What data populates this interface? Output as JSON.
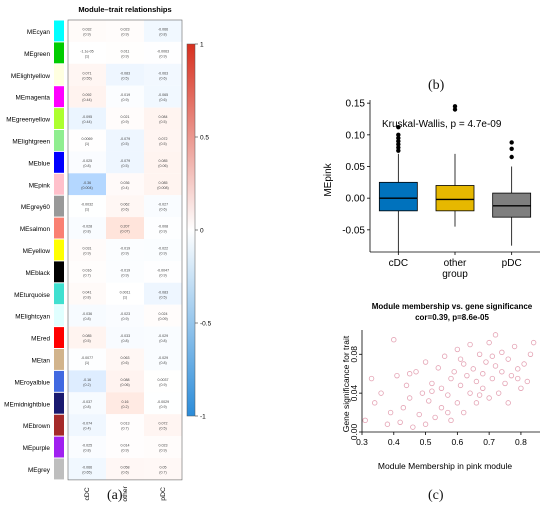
{
  "heatmap": {
    "title": "Module–trait relationships",
    "modules": [
      "MEcyan",
      "MEgreen",
      "MElightyellow",
      "MEmagenta",
      "MEgreenyellow",
      "MElightgreen",
      "MEblue",
      "MEpink",
      "MEgrey60",
      "MEsalmon",
      "MEyellow",
      "MEblack",
      "MEturquoise",
      "MElightcyan",
      "MEred",
      "MEtan",
      "MEroyalblue",
      "MEmidnightblue",
      "MEbrown",
      "MEpurple",
      "MEgrey"
    ],
    "module_colors": [
      "#00ffff",
      "#00cc00",
      "#ffffe0",
      "#ff00ff",
      "#adff2f",
      "#90ee90",
      "#0000ff",
      "#ffc0cb",
      "#999999",
      "#fa8072",
      "#ffff00",
      "#000000",
      "#40e0d0",
      "#e0ffff",
      "#ff0000",
      "#d2b48c",
      "#4169e1",
      "#191970",
      "#a52a2a",
      "#a020f0",
      "#bebebe"
    ],
    "traits": [
      "cDC",
      "other",
      "pDC"
    ],
    "cells": [
      [
        "0.032\n(0.9)",
        "0.023\n(0.9)",
        "-0.066\n(0.8)"
      ],
      [
        "-1.1e-05\n(1)",
        "0.011\n(0.9)",
        "-0.0063\n(0.9)"
      ],
      [
        "0.071\n(0.55)",
        "-0.083\n(0.5)",
        "-0.063\n(0.6)"
      ],
      [
        "0.092\n(0.44)",
        "-0.019\n(0.9)",
        "-0.065\n(0.6)"
      ],
      [
        "-0.095\n(0.44)",
        "0.021\n(0.9)",
        "0.084\n(0.5)"
      ],
      [
        "0.0069\n(1)",
        "-0.079\n(0.5)",
        "0.072\n(0.5)"
      ],
      [
        "-0.025\n(0.8)",
        "-0.079\n(0.5)",
        "0.085\n(0.06)"
      ],
      [
        "-0.36\n(0.004)",
        "0.036\n(0.4)",
        "0.085\n(0.008)"
      ],
      [
        "-0.0032\n(1)",
        "0.062\n(0.6)",
        "-0.027\n(0.6)"
      ],
      [
        "-0.028\n(0.8)",
        "0.207\n(0.07)",
        "-0.008\n(0.9)"
      ],
      [
        "0.031\n(0.9)",
        "-0.019\n(0.9)",
        "-0.022\n(0.9)"
      ],
      [
        "0.016\n(0.7)",
        "-0.019\n(0.9)",
        "-0.0047\n(0.9)"
      ],
      [
        "0.041\n(0.8)",
        "0.0011\n(1)",
        "-0.083\n(0.5)"
      ],
      [
        "-0.036\n(0.8)",
        "-0.023\n(0.9)",
        "0.024\n(0.09)"
      ],
      [
        "0.085\n(0.5)",
        "-0.033\n(0.8)",
        "-0.029\n(0.8)"
      ],
      [
        "-0.0077\n(1)",
        "0.063\n(0.6)",
        "-0.029\n(0.8)"
      ],
      [
        "-0.16\n(0.2)",
        "0.088\n(0.06)",
        "0.0037\n(0.9)"
      ],
      [
        "-0.037\n(0.8)",
        "0.16\n(0.2)",
        "-0.0029\n(0.9)"
      ],
      [
        "-0.074\n(0.4)",
        "0.013\n(0.7)",
        "0.072\n(0.5)"
      ],
      [
        "-0.025\n(0.8)",
        "0.014\n(0.9)",
        "0.023\n(0.9)"
      ],
      [
        "-0.066\n(0.65)",
        "0.058\n(0.6)",
        "0.05\n(0.7)"
      ]
    ],
    "colorbar_ticks": [
      "1",
      "0.5",
      "0",
      "-0.5",
      "-1"
    ],
    "panel_label": "(a)"
  },
  "chart_data": [
    {
      "type": "box",
      "annotation": "Kruskal-Wallis, p = 4.7e-09",
      "ylabel": "MEpink",
      "ylim": [
        -0.085,
        0.155
      ],
      "yticks": [
        "0.15",
        "0.10",
        "0.05",
        "0.00",
        "-0.05"
      ],
      "categories": [
        "cDC",
        "other\ngroup",
        "pDC"
      ],
      "colors": [
        "#0072bd",
        "#e6b800",
        "#7f7f7f"
      ],
      "boxes": [
        {
          "whisker_low": -0.085,
          "q1": -0.02,
          "median": 0.0,
          "q3": 0.025,
          "whisker_high": 0.07,
          "outliers": [
            0.075,
            0.08,
            0.085,
            0.09,
            0.095,
            0.1,
            0.112
          ]
        },
        {
          "whisker_low": -0.045,
          "q1": -0.02,
          "median": -0.002,
          "q3": 0.02,
          "whisker_high": 0.07,
          "outliers": [
            0.14,
            0.145
          ]
        },
        {
          "whisker_low": -0.075,
          "q1": -0.03,
          "median": -0.012,
          "q3": 0.008,
          "whisker_high": 0.05,
          "outliers": [
            0.065,
            0.078,
            0.088
          ]
        }
      ],
      "panel_label": "(b)"
    },
    {
      "type": "scatter",
      "title": "Module membership vs. gene significance",
      "subtitle": "cor=0.39, p=8.6e-05",
      "xlabel": "Module Membership in pink module",
      "ylabel": "Gene significance for trait",
      "xlim": [
        0.3,
        0.86
      ],
      "ylim": [
        0,
        0.105
      ],
      "xticks": [
        "0.3",
        "0.4",
        "0.5",
        "0.6",
        "0.7",
        "0.8"
      ],
      "yticks": [
        "0.00",
        "0.04",
        "0.08"
      ],
      "point_color": "#e4a3b4",
      "points": [
        [
          0.31,
          0.012
        ],
        [
          0.33,
          0.055
        ],
        [
          0.34,
          0.03
        ],
        [
          0.36,
          0.04
        ],
        [
          0.38,
          0.008
        ],
        [
          0.39,
          0.02
        ],
        [
          0.4,
          0.095
        ],
        [
          0.41,
          0.058
        ],
        [
          0.42,
          0.01
        ],
        [
          0.43,
          0.025
        ],
        [
          0.44,
          0.048
        ],
        [
          0.45,
          0.035
        ],
        [
          0.46,
          0.005
        ],
        [
          0.47,
          0.062
        ],
        [
          0.48,
          0.018
        ],
        [
          0.49,
          0.04
        ],
        [
          0.5,
          0.072
        ],
        [
          0.5,
          0.008
        ],
        [
          0.51,
          0.032
        ],
        [
          0.52,
          0.05
        ],
        [
          0.53,
          0.015
        ],
        [
          0.54,
          0.066
        ],
        [
          0.55,
          0.045
        ],
        [
          0.55,
          0.025
        ],
        [
          0.56,
          0.078
        ],
        [
          0.57,
          0.038
        ],
        [
          0.58,
          0.055
        ],
        [
          0.58,
          0.012
        ],
        [
          0.59,
          0.062
        ],
        [
          0.6,
          0.03
        ],
        [
          0.6,
          0.085
        ],
        [
          0.61,
          0.048
        ],
        [
          0.62,
          0.07
        ],
        [
          0.62,
          0.02
        ],
        [
          0.63,
          0.058
        ],
        [
          0.64,
          0.04
        ],
        [
          0.64,
          0.09
        ],
        [
          0.65,
          0.065
        ],
        [
          0.66,
          0.03
        ],
        [
          0.66,
          0.052
        ],
        [
          0.67,
          0.08
        ],
        [
          0.68,
          0.045
        ],
        [
          0.68,
          0.06
        ],
        [
          0.69,
          0.072
        ],
        [
          0.7,
          0.035
        ],
        [
          0.7,
          0.092
        ],
        [
          0.71,
          0.055
        ],
        [
          0.72,
          0.068
        ],
        [
          0.72,
          0.1
        ],
        [
          0.73,
          0.04
        ],
        [
          0.74,
          0.062
        ],
        [
          0.74,
          0.082
        ],
        [
          0.75,
          0.05
        ],
        [
          0.76,
          0.075
        ],
        [
          0.76,
          0.03
        ],
        [
          0.77,
          0.058
        ],
        [
          0.78,
          0.088
        ],
        [
          0.79,
          0.065
        ],
        [
          0.8,
          0.045
        ],
        [
          0.81,
          0.07
        ],
        [
          0.82,
          0.052
        ],
        [
          0.83,
          0.08
        ],
        [
          0.84,
          0.092
        ],
        [
          0.45,
          0.06
        ],
        [
          0.52,
          0.042
        ],
        [
          0.57,
          0.02
        ],
        [
          0.61,
          0.075
        ],
        [
          0.67,
          0.038
        ],
        [
          0.71,
          0.078
        ],
        [
          0.79,
          0.055
        ]
      ],
      "panel_label": "(c)"
    }
  ]
}
